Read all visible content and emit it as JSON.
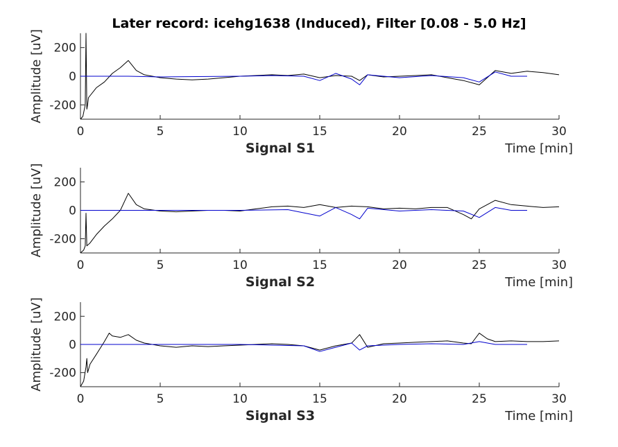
{
  "figure": {
    "title": "Later record: icehg1638 (Induced), Filter [0.08 - 5.0 Hz]"
  },
  "chart_data": [
    {
      "type": "line",
      "subtitle": "Signal S1",
      "xlabel": "Time [min]",
      "ylabel": "Amplitude [uV]",
      "xlim": [
        0,
        30
      ],
      "ylim": [
        -300,
        300
      ],
      "xticks": [
        0,
        5,
        10,
        15,
        20,
        25,
        30
      ],
      "yticks": [
        -200,
        0,
        200
      ],
      "grid": false,
      "series": [
        {
          "color": "#000000",
          "x": [
            0,
            0.15,
            0.3,
            0.35,
            0.4,
            0.45,
            0.5,
            1,
            1.5,
            2,
            2.5,
            3,
            3.5,
            4,
            5,
            6,
            7,
            8,
            9,
            10,
            11,
            12,
            13,
            14,
            15,
            16,
            17,
            17.5,
            18,
            19,
            20,
            21,
            22,
            23,
            24,
            25,
            26,
            27,
            28,
            29,
            30
          ],
          "y": [
            -300,
            -280,
            -200,
            300,
            -230,
            -200,
            -150,
            -80,
            -40,
            20,
            60,
            110,
            40,
            10,
            -10,
            -20,
            -25,
            -20,
            -10,
            0,
            5,
            10,
            5,
            15,
            -10,
            5,
            0,
            -30,
            10,
            -5,
            0,
            5,
            10,
            -10,
            -30,
            -60,
            40,
            20,
            35,
            25,
            10
          ]
        },
        {
          "color": "#0000cc",
          "x": [
            0,
            2.5,
            3,
            5,
            10,
            12,
            14,
            15,
            16,
            17,
            17.5,
            18,
            20,
            22,
            24,
            25,
            26,
            27,
            28
          ],
          "y": [
            0,
            0,
            0,
            -5,
            0,
            5,
            0,
            -30,
            20,
            -20,
            -60,
            10,
            -10,
            5,
            -10,
            -40,
            30,
            0,
            0
          ]
        }
      ]
    },
    {
      "type": "line",
      "subtitle": "Signal S2",
      "xlabel": "Time [min]",
      "ylabel": "Amplitude [uV]",
      "xlim": [
        0,
        30
      ],
      "ylim": [
        -300,
        300
      ],
      "xticks": [
        0,
        5,
        10,
        15,
        20,
        25,
        30
      ],
      "yticks": [
        -200,
        0,
        200
      ],
      "grid": false,
      "series": [
        {
          "color": "#000000",
          "x": [
            0,
            0.2,
            0.3,
            0.35,
            0.4,
            0.6,
            1,
            1.5,
            2,
            2.5,
            3,
            3.5,
            4,
            5,
            6,
            7,
            8,
            9,
            10,
            11,
            12,
            13,
            14,
            15,
            16,
            17,
            18,
            19,
            20,
            21,
            22,
            23,
            24,
            24.5,
            25,
            26,
            27,
            28,
            29,
            30
          ],
          "y": [
            -300,
            -280,
            -250,
            -20,
            -250,
            -230,
            -170,
            -110,
            -60,
            0,
            120,
            40,
            10,
            -5,
            -10,
            -5,
            0,
            0,
            -5,
            10,
            25,
            30,
            20,
            40,
            20,
            30,
            25,
            10,
            15,
            10,
            20,
            20,
            -30,
            -60,
            10,
            70,
            40,
            30,
            20,
            25
          ]
        },
        {
          "color": "#0000cc",
          "x": [
            0,
            2.5,
            3,
            5,
            10,
            13,
            15,
            16,
            17,
            17.5,
            18,
            20,
            22,
            24,
            25,
            26,
            27,
            28
          ],
          "y": [
            0,
            0,
            0,
            0,
            0,
            5,
            -40,
            20,
            -30,
            -60,
            15,
            -5,
            5,
            -5,
            -50,
            20,
            0,
            0
          ]
        }
      ]
    },
    {
      "type": "line",
      "subtitle": "Signal S3",
      "xlabel": "Time [min]",
      "ylabel": "Amplitude [uV]",
      "xlim": [
        0,
        30
      ],
      "ylim": [
        -300,
        300
      ],
      "xticks": [
        0,
        5,
        10,
        15,
        20,
        25,
        30
      ],
      "yticks": [
        -200,
        0,
        200
      ],
      "grid": false,
      "series": [
        {
          "color": "#000000",
          "x": [
            0,
            0.2,
            0.35,
            0.4,
            0.45,
            0.6,
            1,
            1.5,
            1.8,
            2,
            2.5,
            3,
            3.5,
            4,
            5,
            6,
            7,
            8,
            9,
            10,
            11,
            12,
            13,
            14,
            15,
            16,
            17,
            17.5,
            18,
            19,
            20,
            21,
            22,
            23,
            24,
            24.5,
            25,
            25.5,
            26,
            27,
            28,
            29,
            30
          ],
          "y": [
            -300,
            -260,
            -160,
            -100,
            -200,
            -140,
            -70,
            20,
            80,
            60,
            50,
            70,
            30,
            10,
            -10,
            -20,
            -10,
            -15,
            -10,
            -5,
            0,
            5,
            0,
            -10,
            -40,
            -10,
            10,
            70,
            -20,
            5,
            10,
            15,
            20,
            25,
            10,
            5,
            80,
            40,
            20,
            25,
            20,
            20,
            25
          ]
        },
        {
          "color": "#0000cc",
          "x": [
            0,
            1.8,
            2,
            5,
            10,
            14,
            15,
            16,
            17,
            17.5,
            18,
            20,
            22,
            24,
            25,
            26,
            27,
            28
          ],
          "y": [
            0,
            0,
            0,
            0,
            0,
            -10,
            -50,
            -20,
            10,
            -40,
            -10,
            0,
            5,
            0,
            20,
            0,
            0,
            0
          ]
        }
      ]
    }
  ]
}
